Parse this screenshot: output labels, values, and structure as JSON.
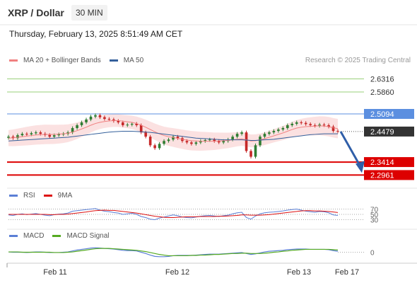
{
  "header": {
    "title": "XRP / Dollar",
    "interval": "30 MIN",
    "timestamp": "Thursday, February 13, 2025 8:51:49 AM CET"
  },
  "legends": {
    "main": [
      {
        "label": "MA 20 + Bollinger Bands",
        "color": "#f08080"
      },
      {
        "label": "MA 50",
        "color": "#34609b"
      }
    ],
    "rsi": [
      {
        "label": "RSI",
        "color": "#5b7fd6"
      },
      {
        "label": "9MA",
        "color": "#dd1111"
      }
    ],
    "macd": [
      {
        "label": "MACD",
        "color": "#5b7fd6"
      },
      {
        "label": "MACD Signal",
        "color": "#55aa22"
      }
    ]
  },
  "credit": "Research © 2025 Trading Central",
  "colors": {
    "green_level": "#9ad07a",
    "blue_level": "#5b8fe0",
    "red_level": "#dd0000",
    "current": "#333333",
    "bull_candle": "#2e7d32",
    "bear_candle": "#c62828",
    "bands": "#fbe1e1",
    "arrow": "#2f5ea8"
  },
  "chart_data": {
    "type": "line",
    "x_labels": [
      "Feb 11",
      "Feb 12",
      "Feb 13",
      "Feb 17"
    ],
    "price_levels": [
      {
        "value": 2.6316,
        "label": "2.6316",
        "kind": "resistance-green"
      },
      {
        "value": 2.586,
        "label": "2.5860",
        "kind": "resistance-green"
      },
      {
        "value": 2.5094,
        "label": "2.5094",
        "kind": "resistance-blue"
      },
      {
        "value": 2.4479,
        "label": "2.4479",
        "kind": "current"
      },
      {
        "value": 2.3414,
        "label": "2.3414",
        "kind": "support-red"
      },
      {
        "value": 2.2961,
        "label": "2.2961",
        "kind": "support-red"
      }
    ],
    "price_ylim": [
      2.27,
      2.66
    ],
    "close": [
      2.43,
      2.425,
      2.435,
      2.44,
      2.438,
      2.442,
      2.445,
      2.44,
      2.436,
      2.43,
      2.435,
      2.438,
      2.44,
      2.445,
      2.46,
      2.47,
      2.48,
      2.49,
      2.5,
      2.505,
      2.498,
      2.492,
      2.49,
      2.485,
      2.48,
      2.47,
      2.472,
      2.475,
      2.47,
      2.445,
      2.43,
      2.4,
      2.39,
      2.405,
      2.415,
      2.42,
      2.43,
      2.425,
      2.415,
      2.41,
      2.405,
      2.41,
      2.415,
      2.418,
      2.42,
      2.415,
      2.41,
      2.415,
      2.42,
      2.43,
      2.44,
      2.445,
      2.38,
      2.36,
      2.4,
      2.43,
      2.44,
      2.445,
      2.45,
      2.455,
      2.46,
      2.47,
      2.475,
      2.48,
      2.478,
      2.474,
      2.47,
      2.468,
      2.472,
      2.47,
      2.465,
      2.45,
      2.4479
    ],
    "ma20": [
      2.425,
      2.426,
      2.428,
      2.43,
      2.432,
      2.434,
      2.436,
      2.437,
      2.438,
      2.438,
      2.438,
      2.439,
      2.44,
      2.442,
      2.446,
      2.451,
      2.457,
      2.463,
      2.47,
      2.476,
      2.48,
      2.483,
      2.485,
      2.486,
      2.486,
      2.484,
      2.482,
      2.48,
      2.476,
      2.47,
      2.463,
      2.455,
      2.447,
      2.44,
      2.434,
      2.43,
      2.427,
      2.424,
      2.421,
      2.418,
      2.416,
      2.415,
      2.414,
      2.414,
      2.414,
      2.414,
      2.415,
      2.416,
      2.417,
      2.419,
      2.421,
      2.422,
      2.419,
      2.415,
      2.416,
      2.419,
      2.423,
      2.428,
      2.433,
      2.438,
      2.443,
      2.449,
      2.455,
      2.46,
      2.463,
      2.465,
      2.466,
      2.467,
      2.468,
      2.467,
      2.465,
      2.461,
      2.458
    ],
    "ma50": [
      2.415,
      2.416,
      2.417,
      2.418,
      2.419,
      2.42,
      2.421,
      2.422,
      2.423,
      2.424,
      2.425,
      2.426,
      2.427,
      2.428,
      2.43,
      2.432,
      2.434,
      2.436,
      2.438,
      2.44,
      2.442,
      2.444,
      2.446,
      2.447,
      2.448,
      2.449,
      2.449,
      2.449,
      2.448,
      2.447,
      2.446,
      2.445,
      2.443,
      2.441,
      2.439,
      2.437,
      2.435,
      2.433,
      2.431,
      2.429,
      2.427,
      2.425,
      2.424,
      2.423,
      2.422,
      2.421,
      2.42,
      2.419,
      2.419,
      2.419,
      2.419,
      2.419,
      2.418,
      2.417,
      2.417,
      2.418,
      2.419,
      2.42,
      2.421,
      2.423,
      2.425,
      2.427,
      2.429,
      2.431,
      2.433,
      2.435,
      2.437,
      2.438,
      2.439,
      2.44,
      2.44,
      2.44,
      2.44
    ],
    "projection": {
      "from": 2.4479,
      "to": 2.2961
    },
    "rsi": {
      "levels": [
        {
          "value": 70,
          "label": "70"
        },
        {
          "value": 50,
          "label": "50"
        },
        {
          "value": 30,
          "label": "30"
        }
      ],
      "ylim": [
        10,
        90
      ],
      "values": [
        48,
        46,
        50,
        52,
        49,
        51,
        53,
        50,
        47,
        45,
        49,
        51,
        52,
        55,
        62,
        64,
        66,
        68,
        70,
        72,
        66,
        62,
        60,
        57,
        55,
        50,
        52,
        54,
        50,
        42,
        38,
        32,
        30,
        36,
        40,
        44,
        48,
        45,
        40,
        38,
        37,
        40,
        43,
        45,
        46,
        44,
        42,
        45,
        47,
        52,
        56,
        58,
        38,
        32,
        44,
        52,
        56,
        58,
        59,
        61,
        63,
        66,
        68,
        70,
        66,
        62,
        60,
        58,
        61,
        60,
        56,
        48,
        46
      ],
      "ma9": [
        50,
        50,
        50,
        50,
        50,
        50,
        50,
        50,
        50,
        49,
        49,
        50,
        50,
        51,
        53,
        55,
        57,
        59,
        62,
        64,
        65,
        66,
        65,
        65,
        63,
        61,
        59,
        57,
        55,
        52,
        49,
        46,
        43,
        41,
        39,
        38,
        38,
        39,
        40,
        41,
        41,
        41,
        42,
        42,
        42,
        42,
        43,
        43,
        44,
        45,
        46,
        48,
        48,
        47,
        47,
        47,
        48,
        49,
        51,
        53,
        55,
        57,
        59,
        61,
        63,
        64,
        64,
        63,
        63,
        62,
        61,
        59,
        57
      ]
    },
    "macd": {
      "levels": [
        {
          "value": 0,
          "label": "0"
        }
      ],
      "ylim": [
        -0.03,
        0.03
      ],
      "macd": [
        0.001,
        0.0,
        0.0,
        0.0,
        -0.001,
        0.0,
        0.001,
        0.001,
        0.0,
        -0.001,
        -0.001,
        -0.001,
        0.0,
        0.001,
        0.004,
        0.007,
        0.009,
        0.011,
        0.013,
        0.014,
        0.013,
        0.012,
        0.011,
        0.01,
        0.008,
        0.006,
        0.005,
        0.005,
        0.004,
        0.0,
        -0.004,
        -0.009,
        -0.013,
        -0.014,
        -0.014,
        -0.013,
        -0.011,
        -0.01,
        -0.01,
        -0.01,
        -0.01,
        -0.009,
        -0.008,
        -0.007,
        -0.006,
        -0.006,
        -0.006,
        -0.005,
        -0.004,
        -0.003,
        -0.002,
        -0.001,
        -0.004,
        -0.007,
        -0.005,
        -0.002,
        0.001,
        0.003,
        0.004,
        0.005,
        0.006,
        0.008,
        0.009,
        0.01,
        0.01,
        0.01,
        0.009,
        0.009,
        0.009,
        0.009,
        0.008,
        0.005,
        0.003
      ],
      "signal": [
        0.001,
        0.001,
        0.001,
        0.0,
        0.0,
        0.0,
        0.0,
        0.0,
        0.0,
        0.0,
        -0.001,
        -0.001,
        -0.001,
        0.0,
        0.001,
        0.003,
        0.005,
        0.007,
        0.009,
        0.011,
        0.012,
        0.012,
        0.012,
        0.011,
        0.01,
        0.009,
        0.008,
        0.007,
        0.006,
        0.004,
        0.002,
        -0.001,
        -0.004,
        -0.007,
        -0.009,
        -0.011,
        -0.011,
        -0.011,
        -0.011,
        -0.011,
        -0.01,
        -0.01,
        -0.009,
        -0.009,
        -0.008,
        -0.007,
        -0.007,
        -0.006,
        -0.005,
        -0.004,
        -0.004,
        -0.003,
        -0.003,
        -0.004,
        -0.004,
        -0.004,
        -0.003,
        -0.002,
        0.0,
        0.001,
        0.003,
        0.004,
        0.006,
        0.007,
        0.008,
        0.009,
        0.009,
        0.009,
        0.009,
        0.009,
        0.009,
        0.008,
        0.007
      ]
    }
  }
}
